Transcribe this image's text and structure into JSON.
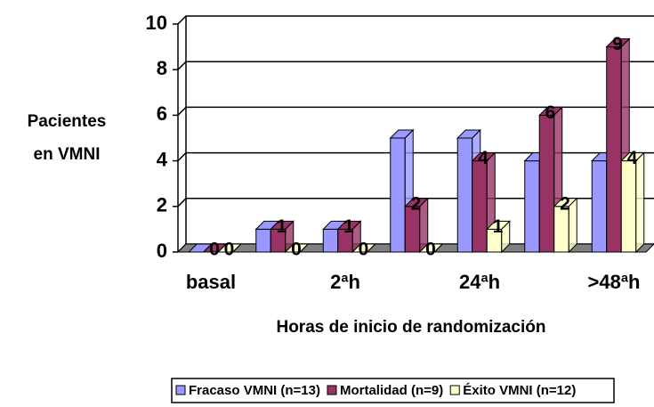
{
  "chart_data": {
    "type": "bar3d",
    "y_label": "Pacientes en VMNI",
    "x_label": "Horas de inicio de randomización",
    "categories": [
      "basal",
      null,
      "2ªh",
      null,
      "24ªh",
      null,
      ">48ªh"
    ],
    "series": [
      {
        "name": "Fracaso VMNI (n=13)",
        "color": "#9999ff",
        "values": [
          0,
          1,
          1,
          5,
          5,
          4,
          4
        ],
        "show_labels": false
      },
      {
        "name": "Mortalidad (n=9)",
        "color": "#993366",
        "values": [
          0,
          1,
          1,
          2,
          4,
          6,
          9
        ],
        "show_labels": true
      },
      {
        "name": "Éxito VMNI (n=12)",
        "color": "#ffffcc",
        "values": [
          0,
          0,
          0,
          0,
          1,
          2,
          4
        ],
        "show_labels": true
      }
    ],
    "ylim": [
      0,
      10
    ],
    "yticks": [
      0,
      2,
      4,
      6,
      8,
      10
    ],
    "grid": true,
    "legend": "bottom"
  }
}
